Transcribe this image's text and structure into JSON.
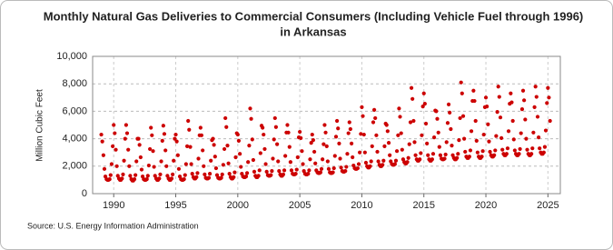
{
  "chart_data": {
    "type": "scatter",
    "title": "Monthly Natural Gas Deliveries to Commercial Consumers (Including Vehicle Fuel through 1996)",
    "subtitle": "in Arkansas",
    "y_label": "Million Cubic Feet",
    "source": "Source: U.S. Energy Information Administration",
    "color": "#cc0000",
    "grid": true,
    "xlim": [
      1988.3,
      2026
    ],
    "xticks": [
      1990,
      1995,
      2000,
      2005,
      2010,
      2015,
      2020,
      2025
    ],
    "ylim": [
      0,
      10000
    ],
    "yticks": [
      0,
      {
        "value": 2000,
        "label": "2,000"
      },
      {
        "value": 4000,
        "label": "4,000"
      },
      {
        "value": 6000,
        "label": "6,000"
      },
      {
        "value": 8000,
        "label": "8,000"
      },
      {
        "value": 10000,
        "label": "10,000"
      }
    ],
    "x": [
      1989,
      1989.08,
      1989.17,
      1989.25,
      1989.33,
      1989.42,
      1989.5,
      1989.58,
      1989.67,
      1989.75,
      1989.83,
      1989.92,
      1990,
      1990.08,
      1990.17,
      1990.25,
      1990.33,
      1990.42,
      1990.5,
      1990.58,
      1990.67,
      1990.75,
      1990.83,
      1990.92,
      1991,
      1991.08,
      1991.17,
      1991.25,
      1991.33,
      1991.42,
      1991.5,
      1991.58,
      1991.67,
      1991.75,
      1991.83,
      1991.92,
      1992,
      1992.08,
      1992.17,
      1992.25,
      1992.33,
      1992.42,
      1992.5,
      1992.58,
      1992.67,
      1992.75,
      1992.83,
      1992.92,
      1993,
      1993.08,
      1993.17,
      1993.25,
      1993.33,
      1993.42,
      1993.5,
      1993.58,
      1993.67,
      1993.75,
      1993.83,
      1993.92,
      1994,
      1994.08,
      1994.17,
      1994.25,
      1994.33,
      1994.42,
      1994.5,
      1994.58,
      1994.67,
      1994.75,
      1994.83,
      1994.92,
      1995,
      1995.08,
      1995.17,
      1995.25,
      1995.33,
      1995.42,
      1995.5,
      1995.58,
      1995.67,
      1995.75,
      1995.83,
      1995.92,
      1996,
      1996.08,
      1996.17,
      1996.25,
      1996.33,
      1996.42,
      1996.5,
      1996.58,
      1996.67,
      1996.75,
      1996.83,
      1996.92,
      1997,
      1997.08,
      1997.17,
      1997.25,
      1997.33,
      1997.42,
      1997.5,
      1997.58,
      1997.67,
      1997.75,
      1997.83,
      1997.92,
      1998,
      1998.08,
      1998.17,
      1998.25,
      1998.33,
      1998.42,
      1998.5,
      1998.58,
      1998.67,
      1998.75,
      1998.83,
      1998.92,
      1999,
      1999.08,
      1999.17,
      1999.25,
      1999.33,
      1999.42,
      1999.5,
      1999.58,
      1999.67,
      1999.75,
      1999.83,
      1999.92,
      2000,
      2000.08,
      2000.17,
      2000.25,
      2000.33,
      2000.42,
      2000.5,
      2000.58,
      2000.67,
      2000.75,
      2000.83,
      2000.92,
      2001,
      2001.08,
      2001.17,
      2001.25,
      2001.33,
      2001.42,
      2001.5,
      2001.58,
      2001.67,
      2001.75,
      2001.83,
      2001.92,
      2002,
      2002.08,
      2002.17,
      2002.25,
      2002.33,
      2002.42,
      2002.5,
      2002.58,
      2002.67,
      2002.75,
      2002.83,
      2002.92,
      2003,
      2003.08,
      2003.17,
      2003.25,
      2003.33,
      2003.42,
      2003.5,
      2003.58,
      2003.67,
      2003.75,
      2003.83,
      2003.92,
      2004,
      2004.08,
      2004.17,
      2004.25,
      2004.33,
      2004.42,
      2004.5,
      2004.58,
      2004.67,
      2004.75,
      2004.83,
      2004.92,
      2005,
      2005.08,
      2005.17,
      2005.25,
      2005.33,
      2005.42,
      2005.5,
      2005.58,
      2005.67,
      2005.75,
      2005.83,
      2005.92,
      2006,
      2006.08,
      2006.17,
      2006.25,
      2006.33,
      2006.42,
      2006.5,
      2006.58,
      2006.67,
      2006.75,
      2006.83,
      2006.92,
      2007,
      2007.08,
      2007.17,
      2007.25,
      2007.33,
      2007.42,
      2007.5,
      2007.58,
      2007.67,
      2007.75,
      2007.83,
      2007.92,
      2008,
      2008.08,
      2008.17,
      2008.25,
      2008.33,
      2008.42,
      2008.5,
      2008.58,
      2008.67,
      2008.75,
      2008.83,
      2008.92,
      2009,
      2009.08,
      2009.17,
      2009.25,
      2009.33,
      2009.42,
      2009.5,
      2009.58,
      2009.67,
      2009.75,
      2009.83,
      2009.92,
      2010,
      2010.08,
      2010.17,
      2010.25,
      2010.33,
      2010.42,
      2010.5,
      2010.58,
      2010.67,
      2010.75,
      2010.83,
      2010.92,
      2011,
      2011.08,
      2011.17,
      2011.25,
      2011.33,
      2011.42,
      2011.5,
      2011.58,
      2011.67,
      2011.75,
      2011.83,
      2011.92,
      2012,
      2012.08,
      2012.17,
      2012.25,
      2012.33,
      2012.42,
      2012.5,
      2012.58,
      2012.67,
      2012.75,
      2012.83,
      2012.92,
      2013,
      2013.08,
      2013.17,
      2013.25,
      2013.33,
      2013.42,
      2013.5,
      2013.58,
      2013.67,
      2013.75,
      2013.83,
      2013.92,
      2014,
      2014.08,
      2014.17,
      2014.25,
      2014.33,
      2014.42,
      2014.5,
      2014.58,
      2014.67,
      2014.75,
      2014.83,
      2014.92,
      2015,
      2015.08,
      2015.17,
      2015.25,
      2015.33,
      2015.42,
      2015.5,
      2015.58,
      2015.67,
      2015.75,
      2015.83,
      2015.92,
      2016,
      2016.08,
      2016.17,
      2016.25,
      2016.33,
      2016.42,
      2016.5,
      2016.58,
      2016.67,
      2016.75,
      2016.83,
      2016.92,
      2017,
      2017.08,
      2017.17,
      2017.25,
      2017.33,
      2017.42,
      2017.5,
      2017.58,
      2017.67,
      2017.75,
      2017.83,
      2017.92,
      2018,
      2018.08,
      2018.17,
      2018.25,
      2018.33,
      2018.42,
      2018.5,
      2018.58,
      2018.67,
      2018.75,
      2018.83,
      2018.92,
      2019,
      2019.08,
      2019.17,
      2019.25,
      2019.33,
      2019.42,
      2019.5,
      2019.58,
      2019.67,
      2019.75,
      2019.83,
      2019.92,
      2020,
      2020.08,
      2020.17,
      2020.25,
      2020.33,
      2020.42,
      2020.5,
      2020.58,
      2020.67,
      2020.75,
      2020.83,
      2020.92,
      2021,
      2021.08,
      2021.17,
      2021.25,
      2021.33,
      2021.42,
      2021.5,
      2021.58,
      2021.67,
      2021.75,
      2021.83,
      2021.92,
      2022,
      2022.08,
      2022.17,
      2022.25,
      2022.33,
      2022.42,
      2022.5,
      2022.58,
      2022.67,
      2022.75,
      2022.83,
      2022.92,
      2023,
      2023.08,
      2023.17,
      2023.25,
      2023.33,
      2023.42,
      2023.5,
      2023.58,
      2023.67,
      2023.75,
      2023.83,
      2023.92,
      2024,
      2024.08,
      2024.17,
      2024.25,
      2024.33,
      2024.42,
      2024.5,
      2024.58,
      2024.67,
      2024.75,
      2024.83,
      2024.92,
      2025,
      2025.08,
      2025.17
    ],
    "values": [
      4300,
      3800,
      2800,
      1800,
      1250,
      1050,
      1000,
      1000,
      1050,
      1350,
      2150,
      3450,
      5000,
      4400,
      3200,
      2000,
      1300,
      1100,
      1000,
      1000,
      1100,
      1400,
      2400,
      4000,
      5000,
      4400,
      3200,
      2000,
      1300,
      1050,
      950,
      950,
      1050,
      1350,
      2350,
      4000,
      4000,
      3550,
      2650,
      1750,
      1250,
      1050,
      1000,
      1000,
      1050,
      1300,
      2050,
      3250,
      4800,
      4250,
      3100,
      1950,
      1300,
      1100,
      1000,
      1000,
      1100,
      1400,
      2350,
      3850,
      4950,
      4350,
      3150,
      2000,
      1300,
      1100,
      1000,
      1000,
      1100,
      1400,
      2400,
      4000,
      4300,
      3800,
      2800,
      1800,
      1250,
      1050,
      1000,
      1000,
      1050,
      1350,
      2150,
      3450,
      5300,
      4650,
      3400,
      2150,
      1450,
      1200,
      1100,
      1100,
      1200,
      1500,
      2550,
      4250,
      4800,
      4250,
      3150,
      2000,
      1400,
      1150,
      1100,
      1100,
      1150,
      1450,
      2400,
      3900,
      4000,
      3550,
      2700,
      1850,
      1350,
      1150,
      1100,
      1100,
      1150,
      1400,
      2100,
      3250,
      5500,
      4850,
      3500,
      2200,
      1450,
      1200,
      1100,
      1100,
      1200,
      1550,
      2650,
      4400,
      4300,
      3850,
      2900,
      1950,
      1450,
      1250,
      1200,
      1200,
      1250,
      1500,
      2300,
      3500,
      6200,
      5450,
      3950,
      2450,
      1600,
      1300,
      1200,
      1200,
      1300,
      1700,
      2950,
      4950,
      4800,
      4300,
      3250,
      2150,
      1600,
      1350,
      1300,
      1300,
      1350,
      1650,
      2550,
      3950,
      5500,
      4850,
      3600,
      2350,
      1650,
      1400,
      1300,
      1300,
      1400,
      1700,
      2750,
      4450,
      5000,
      4450,
      3400,
      2300,
      1700,
      1450,
      1400,
      1400,
      1450,
      1750,
      2650,
      4100,
      4500,
      4050,
      3100,
      2150,
      1650,
      1450,
      1400,
      1400,
      1450,
      1700,
      2500,
      3700,
      4300,
      3900,
      3050,
      2200,
      1700,
      1550,
      1500,
      1500,
      1550,
      1800,
      2500,
      3600,
      5000,
      4450,
      3450,
      2350,
      1800,
      1550,
      1500,
      1500,
      1550,
      1850,
      2750,
      4150,
      5300,
      4750,
      3650,
      2550,
      1900,
      1650,
      1600,
      1600,
      1650,
      1950,
      2900,
      4400,
      5200,
      4700,
      3650,
      2650,
      2050,
      1850,
      1800,
      1800,
      1850,
      2150,
      3000,
      4350,
      6300,
      5650,
      4300,
      3000,
      2250,
      2000,
      1900,
      1900,
      2000,
      2350,
      3450,
      5200,
      6100,
      5500,
      4250,
      3050,
      2350,
      2100,
      2000,
      2000,
      2100,
      2400,
      3450,
      5100,
      5000,
      4550,
      3700,
      2800,
      2350,
      2150,
      2100,
      2100,
      2150,
      2400,
      3100,
      4250,
      6200,
      5600,
      4400,
      3200,
      2500,
      2300,
      2200,
      2200,
      2300,
      2600,
      3600,
      5200,
      7700,
      6900,
      5300,
      3750,
      2800,
      2500,
      2400,
      2400,
      2500,
      2950,
      4250,
      6350,
      7300,
      6550,
      5100,
      3650,
      2800,
      2500,
      2400,
      2400,
      2500,
      2900,
      4100,
      6050,
      6000,
      5450,
      4450,
      3400,
      2800,
      2550,
      2500,
      2500,
      2550,
      2850,
      3750,
      5150,
      6500,
      5900,
      4700,
      3500,
      2800,
      2600,
      2500,
      2500,
      2600,
      2900,
      3900,
      5500,
      8100,
      7300,
      5650,
      4000,
      3050,
      2700,
      2600,
      2600,
      2700,
      3150,
      4550,
      6750,
      7500,
      6750,
      5300,
      3850,
      3000,
      2700,
      2600,
      2600,
      2700,
      3100,
      4300,
      6300,
      7000,
      6350,
      5050,
      3800,
      3050,
      2800,
      2700,
      2700,
      2800,
      3150,
      4200,
      5950,
      7800,
      7050,
      5550,
      4050,
      3200,
      2900,
      2800,
      2800,
      2900,
      3300,
      4550,
      6550,
      7300,
      6650,
      5300,
      3950,
      3150,
      2900,
      2800,
      2800,
      2900,
      3250,
      4400,
      6150,
      7500,
      6800,
      5400,
      4000,
      3200,
      2900,
      2800,
      2800,
      2900,
      3300,
      4450,
      6300,
      7800,
      7050,
      5600,
      4100,
      3300,
      3000,
      2900,
      2900,
      3000,
      3400,
      4600,
      6600,
      7700,
      7000,
      5300
    ]
  }
}
